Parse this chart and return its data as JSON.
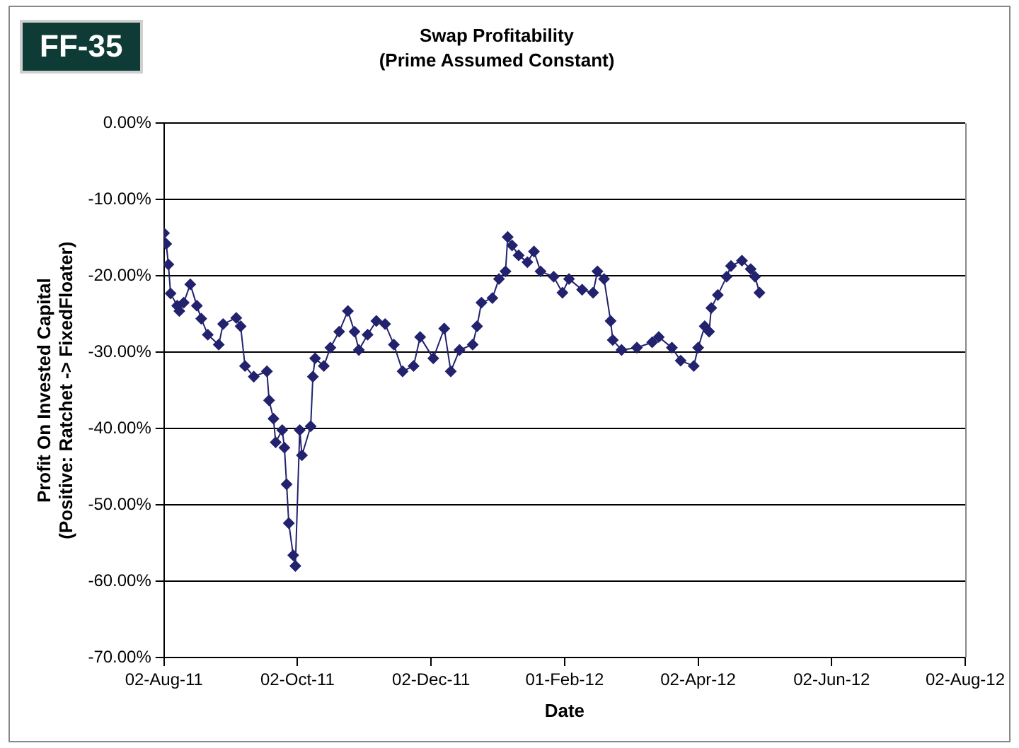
{
  "chart_data": {
    "type": "line",
    "title": "Swap Profitability",
    "subtitle": "(Prime Assumed Constant)",
    "xlabel": "Date",
    "ylabel": "Profit On Invested Capital\n(Positive: Ratchet -> FixedFloater)",
    "annotations": [
      "FF-35"
    ],
    "x": [
      "2011-08-02",
      "2011-08-03",
      "2011-08-04",
      "2011-08-05",
      "2011-08-08",
      "2011-08-09",
      "2011-08-11",
      "2011-08-14",
      "2011-08-17",
      "2011-08-19",
      "2011-08-22",
      "2011-08-27",
      "2011-08-29",
      "2011-09-04",
      "2011-09-06",
      "2011-09-08",
      "2011-09-12",
      "2011-09-18",
      "2011-09-19",
      "2011-09-21",
      "2011-09-22",
      "2011-09-25",
      "2011-09-26",
      "2011-09-27",
      "2011-09-28",
      "2011-09-30",
      "2011-10-01",
      "2011-10-03",
      "2011-10-04",
      "2011-10-08",
      "2011-10-09",
      "2011-10-10",
      "2011-10-14",
      "2011-10-17",
      "2011-10-21",
      "2011-10-25",
      "2011-10-28",
      "2011-10-30",
      "2011-11-03",
      "2011-11-07",
      "2011-11-11",
      "2011-11-15",
      "2011-11-19",
      "2011-11-24",
      "2011-11-27",
      "2011-12-03",
      "2011-12-08",
      "2011-12-11",
      "2011-12-15",
      "2011-12-21",
      "2011-12-23",
      "2011-12-25",
      "2011-12-30",
      "2012-01-02",
      "2012-01-05",
      "2012-01-06",
      "2012-01-08",
      "2012-01-11",
      "2012-01-15",
      "2012-01-18",
      "2012-01-21",
      "2012-01-27",
      "2012-01-31",
      "2012-02-03",
      "2012-02-09",
      "2012-02-14",
      "2012-02-16",
      "2012-02-19",
      "2012-02-22",
      "2012-02-23",
      "2012-02-27",
      "2012-03-05",
      "2012-03-12",
      "2012-03-15",
      "2012-03-21",
      "2012-03-25",
      "2012-03-31",
      "2012-04-02",
      "2012-04-05",
      "2012-04-07",
      "2012-04-08",
      "2012-04-11",
      "2012-04-15",
      "2012-04-17",
      "2012-04-22",
      "2012-04-26",
      "2012-04-28",
      "2012-04-30"
    ],
    "series": [
      {
        "color": "#22226e",
        "values": [
          -14.4,
          -15.8,
          -18.5,
          -22.3,
          -23.9,
          -24.6,
          -23.5,
          -21.1,
          -23.9,
          -25.6,
          -27.7,
          -29.0,
          -26.3,
          -25.5,
          -26.6,
          -31.8,
          -33.2,
          -32.5,
          -36.3,
          -38.7,
          -41.8,
          -40.2,
          -42.5,
          -47.3,
          -52.4,
          -56.6,
          -58.0,
          -40.2,
          -43.5,
          -39.7,
          -33.2,
          -30.8,
          -31.8,
          -29.4,
          -27.3,
          -24.6,
          -27.3,
          -29.7,
          -27.7,
          -25.9,
          -26.3,
          -29.0,
          -32.5,
          -31.8,
          -28.0,
          -30.8,
          -26.9,
          -32.5,
          -29.7,
          -29.0,
          -26.6,
          -23.5,
          -22.9,
          -20.4,
          -19.4,
          -14.9,
          -16.0,
          -17.3,
          -18.2,
          -16.8,
          -19.4,
          -20.1,
          -22.2,
          -20.4,
          -21.8,
          -22.2,
          -19.4,
          -20.4,
          -25.9,
          -28.4,
          -29.7,
          -29.4,
          -28.7,
          -28.0,
          -29.4,
          -31.1,
          -31.8,
          -29.4,
          -26.6,
          -27.3,
          -24.2,
          -22.5,
          -20.1,
          -18.7,
          -18.0,
          -19.1,
          -20.1,
          -22.2
        ]
      }
    ],
    "xlim": [
      "2011-08-02",
      "2012-08-02"
    ],
    "xticks": [
      {
        "value": "2011-08-02",
        "label": "02-Aug-11"
      },
      {
        "value": "2011-10-02",
        "label": "02-Oct-11"
      },
      {
        "value": "2011-12-02",
        "label": "02-Dec-11"
      },
      {
        "value": "2012-02-01",
        "label": "01-Feb-12"
      },
      {
        "value": "2012-04-02",
        "label": "02-Apr-12"
      },
      {
        "value": "2012-06-02",
        "label": "02-Jun-12"
      },
      {
        "value": "2012-08-02",
        "label": "02-Aug-12"
      }
    ],
    "ylim": [
      -70,
      0
    ],
    "yticks": [
      {
        "value": -70,
        "label": "-70.00%"
      },
      {
        "value": -60,
        "label": "-60.00%"
      },
      {
        "value": -50,
        "label": "-50.00%"
      },
      {
        "value": -40,
        "label": "-40.00%"
      },
      {
        "value": -30,
        "label": "-30.00%"
      },
      {
        "value": -20,
        "label": "-20.00%"
      },
      {
        "value": -10,
        "label": "-10.00%"
      },
      {
        "value": 0,
        "label": "0.00%"
      }
    ],
    "grid": "y",
    "legend": false,
    "marker": "diamond",
    "line_style": "solid"
  }
}
